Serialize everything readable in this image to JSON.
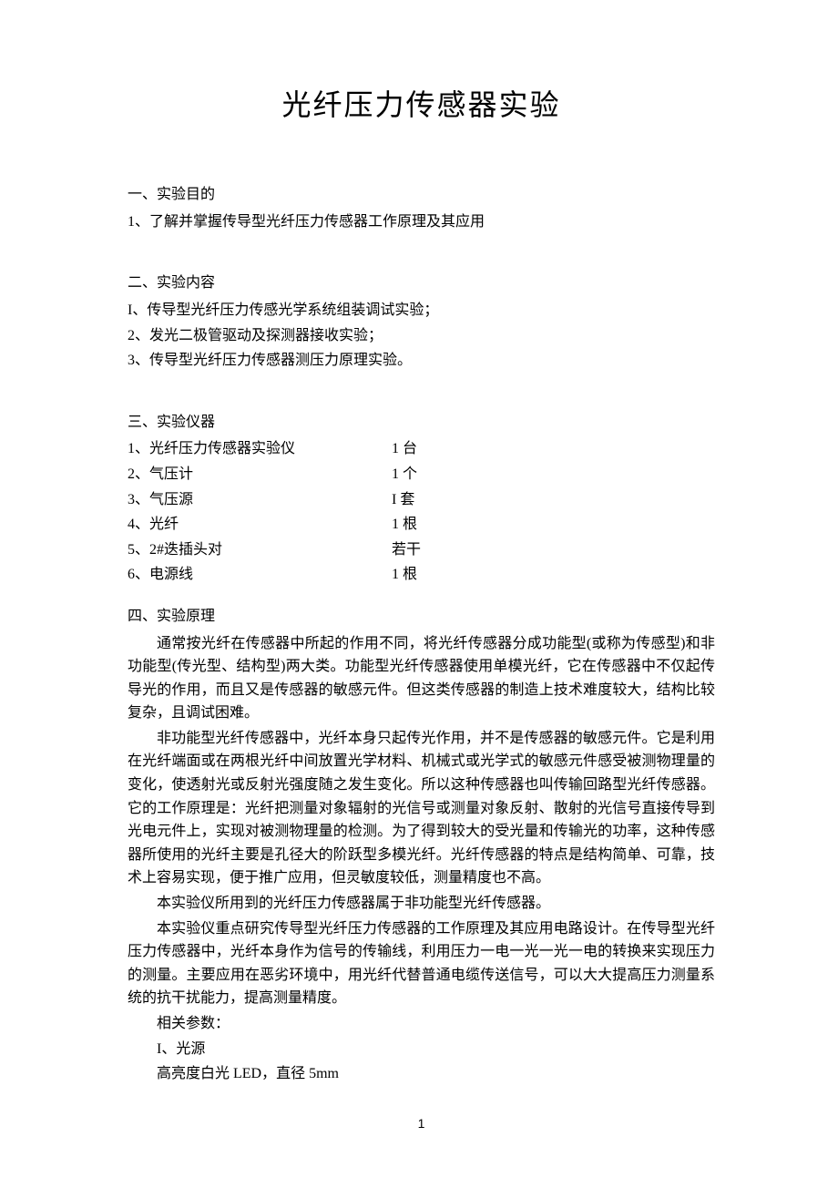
{
  "title": "光纤压力传感器实验",
  "section1": {
    "heading": "一、实验目的",
    "items": [
      "1、了解并掌握传导型光纤压力传感器工作原理及其应用"
    ]
  },
  "section2": {
    "heading": "二、实验内容",
    "items": [
      "I、传导型光纤压力传感光学系统组装调试实验；",
      "2、发光二极管驱动及探测器接收实验；",
      "3、传导型光纤压力传感器测压力原理实验。"
    ]
  },
  "section3": {
    "heading": "三、实验仪器",
    "equipment": [
      {
        "name": "1、光纤压力传感器实验仪",
        "qty": "1 台"
      },
      {
        "name": "2、气压计",
        "qty": "1 个"
      },
      {
        "name": "3、气压源",
        "qty": "I 套"
      },
      {
        "name": "4、光纤",
        "qty": "1 根"
      },
      {
        "name": "5、2#迭插头对",
        "qty": "若干"
      },
      {
        "name": "6、电源线",
        "qty": "1 根"
      }
    ]
  },
  "section4": {
    "heading": "四、实验原理",
    "paragraphs": [
      "通常按光纤在传感器中所起的作用不同，将光纤传感器分成功能型(或称为传感型)和非功能型(传光型、结构型)两大类。功能型光纤传感器使用单模光纤，它在传感器中不仅起传导光的作用，而且又是传感器的敏感元件。但这类传感器的制造上技术难度较大，结构比较复杂，且调试困难。",
      "非功能型光纤传感器中，光纤本身只起传光作用，并不是传感器的敏感元件。它是利用在光纤端面或在两根光纤中间放置光学材料、机械式或光学式的敏感元件感受被测物理量的变化，使透射光或反射光强度随之发生变化。所以这种传感器也叫传输回路型光纤传感器。它的工作原理是：光纤把测量对象辐射的光信号或测量对象反射、散射的光信号直接传导到光电元件上，实现对被测物理量的检测。为了得到较大的受光量和传输光的功率，这种传感器所使用的光纤主要是孔径大的阶跃型多模光纤。光纤传感器的特点是结构简单、可靠，技术上容易实现，便于推广应用，但灵敏度较低，测量精度也不高。",
      "本实验仪所用到的光纤压力传感器属于非功能型光纤传感器。",
      "本实验仪重点研究传导型光纤压力传感器的工作原理及其应用电路设计。在传导型光纤压力传感器中，光纤本身作为信号的传输线，利用压力一电一光一光一电的转换来实现压力的测量。主要应用在恶劣环境中，用光纤代替普通电缆传送信号，可以大大提高压力测量系统的抗干扰能力，提高测量精度。"
    ],
    "params_heading": "相关参数：",
    "params": [
      "I、光源",
      "高亮度白光 LED，直径 5mm"
    ]
  },
  "page_number": "1"
}
